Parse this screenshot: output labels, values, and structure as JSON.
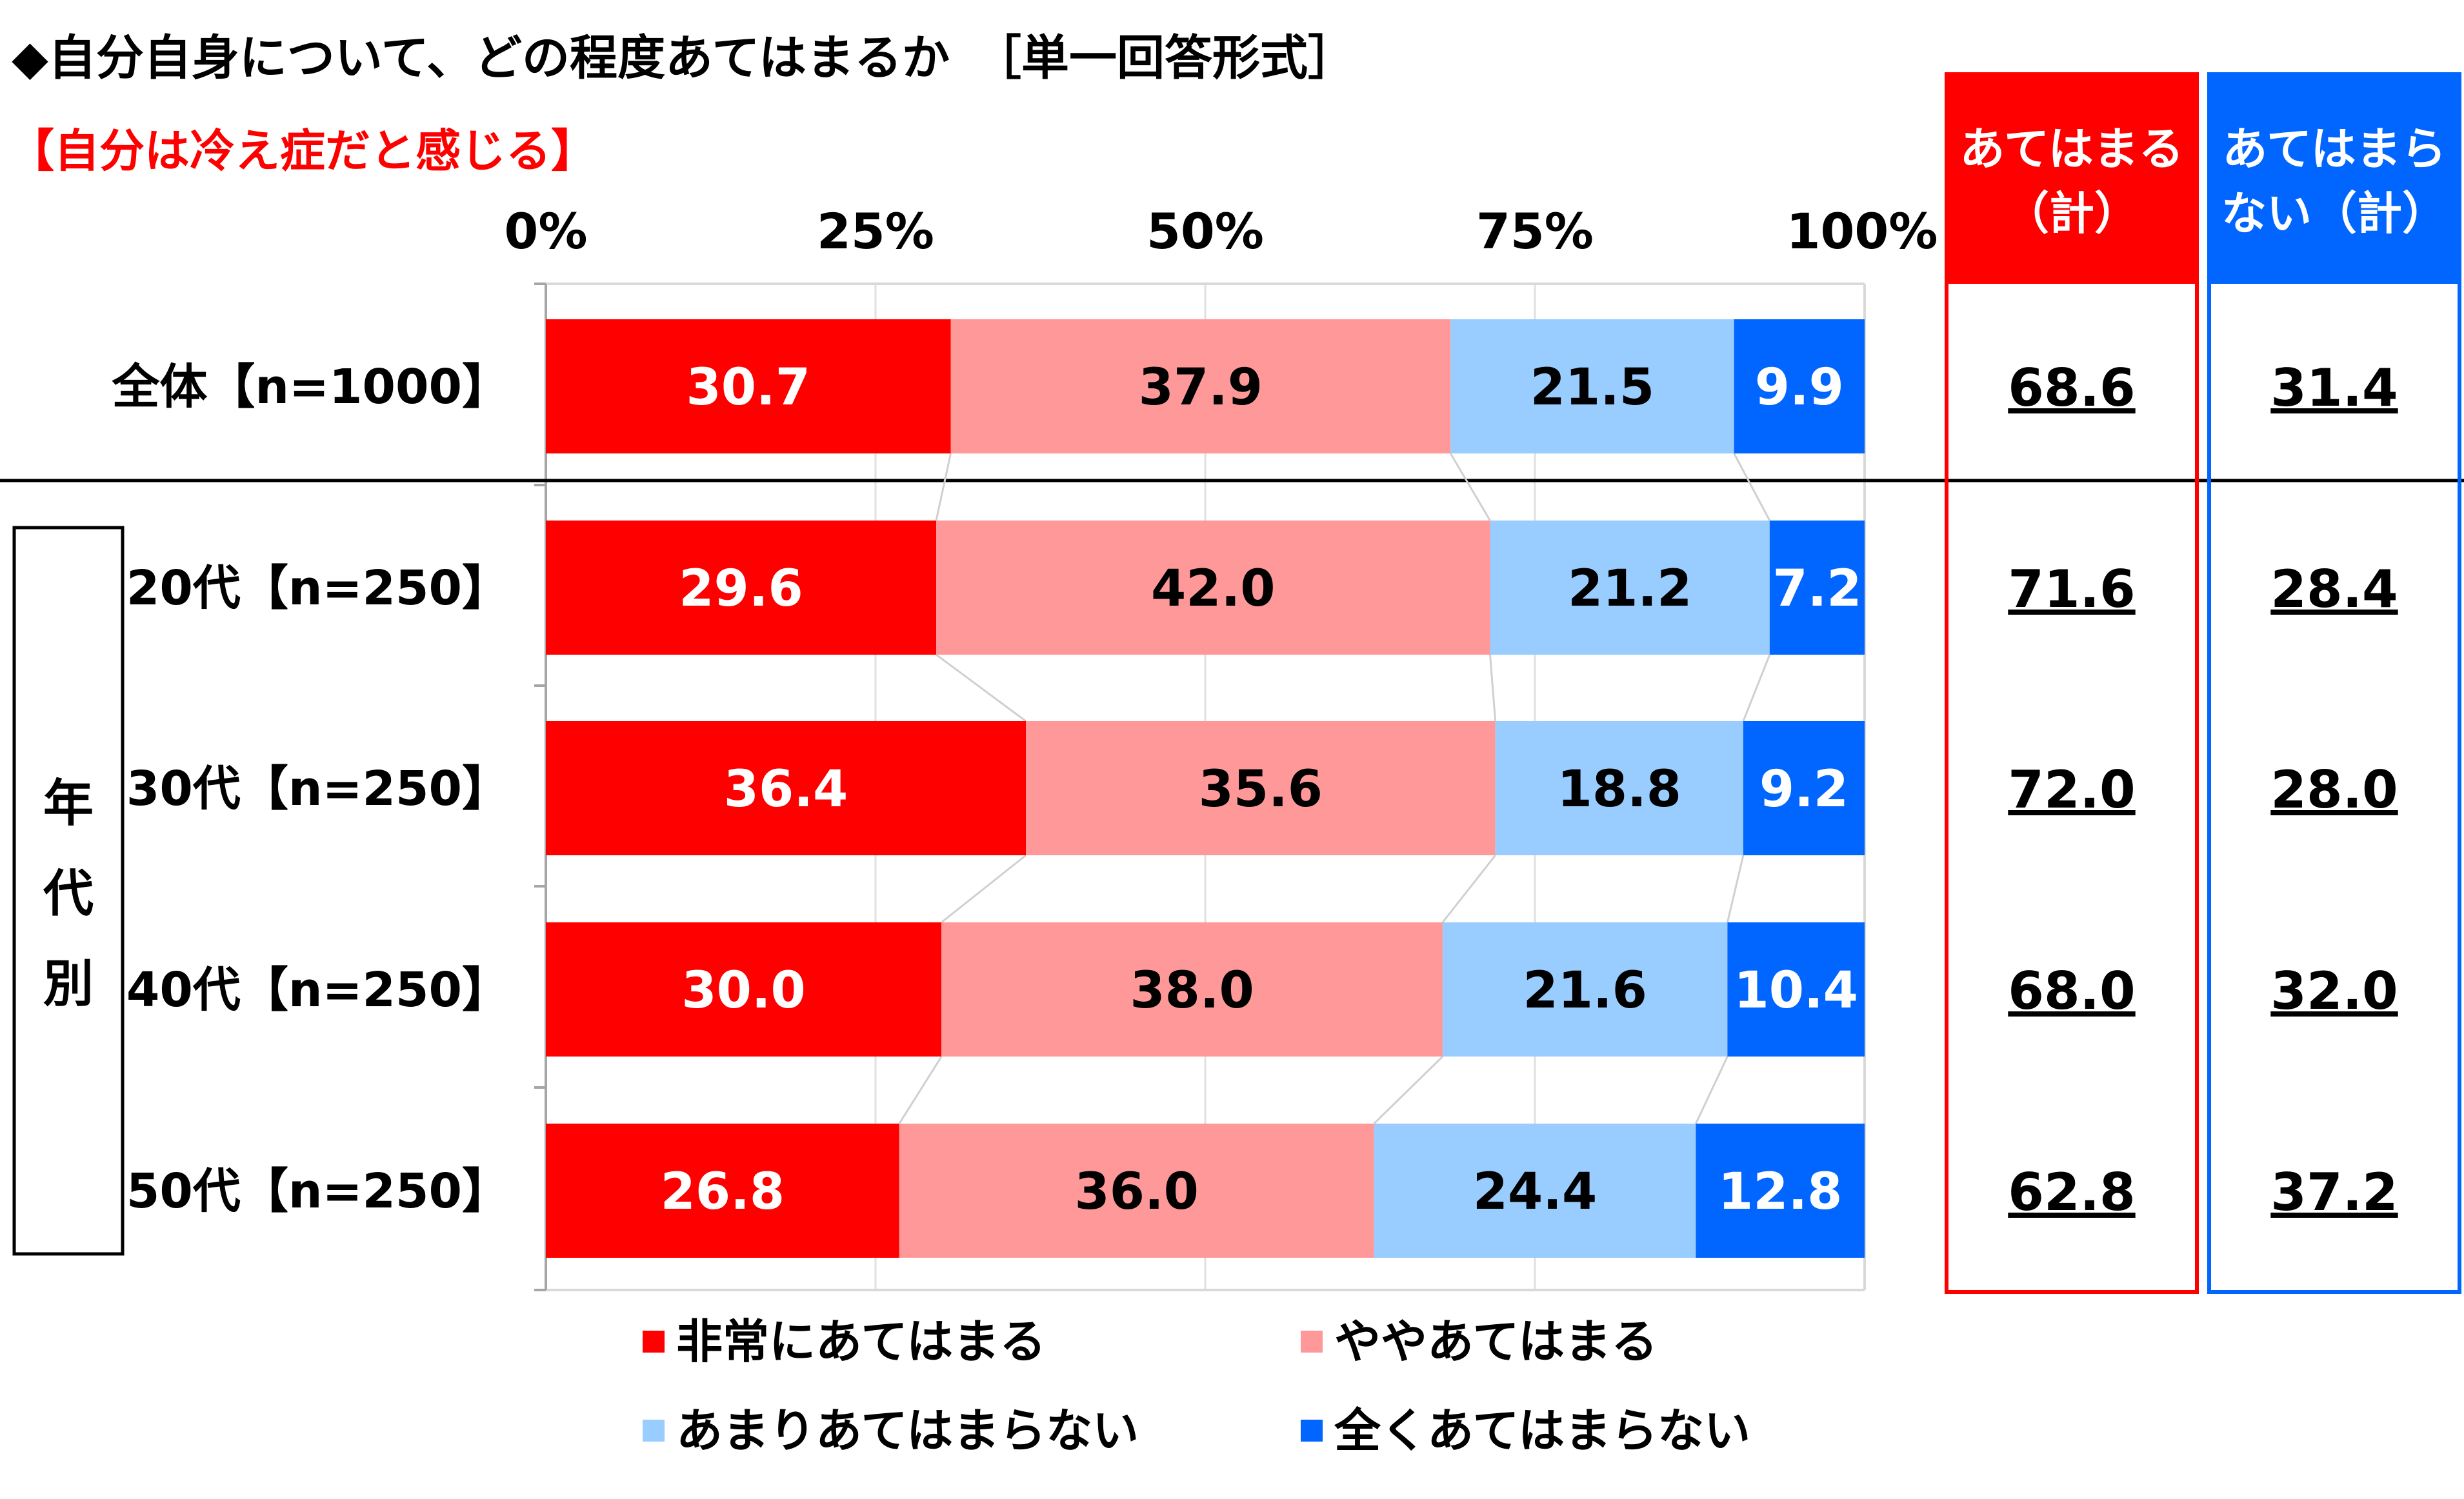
{
  "title": "◆自分自身について、どの程度あてはまるか　［単一回答形式］",
  "subtitle": "【自分は冷え症だと感じる】",
  "chart_data": {
    "type": "bar",
    "orientation": "horizontal",
    "stacked": true,
    "normalized": true,
    "categories": [
      "全体【n=1000】",
      "20代【n=250】",
      "30代【n=250】",
      "40代【n=250】",
      "50代【n=250】"
    ],
    "x_ticks": [
      "0%",
      "25%",
      "50%",
      "75%",
      "100%"
    ],
    "xlim": [
      0,
      100
    ],
    "grid": true,
    "legend_position": "bottom",
    "series": [
      {
        "name": "非常にあてはまる",
        "color": "#ff0000",
        "label_color": "#ffffff",
        "values": [
          30.7,
          29.6,
          36.4,
          30.0,
          26.8
        ],
        "labels": [
          "30.7",
          "29.6",
          "36.4",
          "30.0",
          "26.8"
        ]
      },
      {
        "name": "ややあてはまる",
        "color": "#ff9999",
        "label_color": "#000000",
        "values": [
          37.9,
          42.0,
          35.6,
          38.0,
          36.0
        ],
        "labels": [
          "37.9",
          "42.0",
          "35.6",
          "38.0",
          "36.0"
        ]
      },
      {
        "name": "あまりあてはまらない",
        "color": "#99ccff",
        "label_color": "#000000",
        "values": [
          21.5,
          21.2,
          18.8,
          21.6,
          24.4
        ],
        "labels": [
          "21.5",
          "21.2",
          "18.8",
          "21.6",
          "24.4"
        ]
      },
      {
        "name": "全くあてはまらない",
        "color": "#0066ff",
        "label_color": "#ffffff",
        "values": [
          9.9,
          7.2,
          9.2,
          10.4,
          12.8
        ],
        "labels": [
          "9.9",
          "7.2",
          "9.2",
          "10.4",
          "12.8"
        ]
      }
    ],
    "group_label": "年代別",
    "totals": [
      {
        "header": [
          "あてはまる",
          "（計）"
        ],
        "color": "#ff0000",
        "values": [
          "68.6",
          "71.6",
          "72.0",
          "68.0",
          "62.8"
        ]
      },
      {
        "header": [
          "あてはまら",
          "ない（計）"
        ],
        "color": "#0066ff",
        "values": [
          "31.4",
          "28.4",
          "28.0",
          "32.0",
          "37.2"
        ]
      }
    ]
  }
}
